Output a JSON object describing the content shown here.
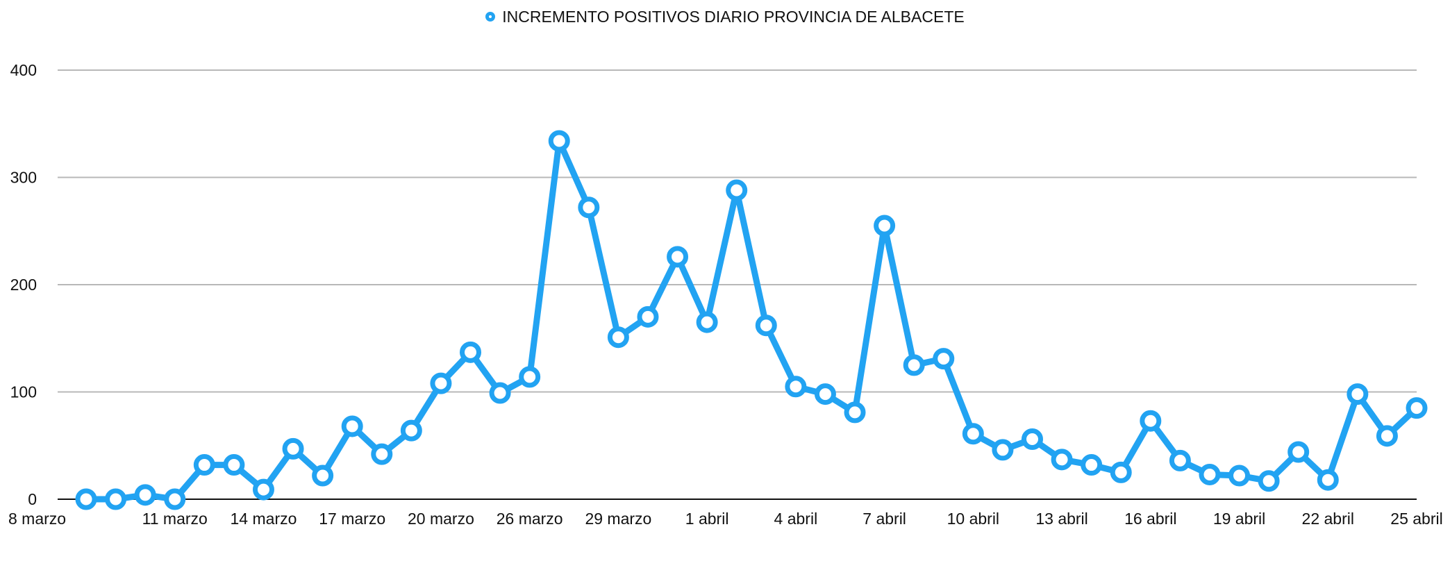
{
  "chart_data": {
    "type": "line",
    "title": "",
    "xlabel": "",
    "ylabel": "",
    "ylim": [
      0,
      400
    ],
    "yticks": [
      0,
      100,
      200,
      300,
      400
    ],
    "grid": true,
    "legend_placement": "top-center",
    "series_color": "#22a3f2",
    "x_tick_labels": [
      "8 marzo",
      "11 marzo",
      "14 marzo",
      "17 marzo",
      "20 marzo",
      "26 marzo",
      "29 marzo",
      "1 abril",
      "4 abril",
      "7 abril",
      "10 abril",
      "13 abril",
      "16 abril",
      "19 abril",
      "22 abril",
      "25 abril"
    ],
    "x_tick_every": 3,
    "series": [
      {
        "name": "INCREMENTO POSITIVOS DIARIO PROVINCIA DE ALBACETE",
        "values": [
          0,
          0,
          4,
          0,
          32,
          32,
          9,
          47,
          22,
          68,
          42,
          64,
          108,
          137,
          99,
          114,
          334,
          272,
          151,
          170,
          226,
          165,
          288,
          162,
          105,
          98,
          81,
          255,
          125,
          131,
          61,
          46,
          56,
          37,
          32,
          25,
          73,
          36,
          23,
          22,
          17,
          44,
          18,
          98,
          59,
          85
        ]
      }
    ]
  }
}
